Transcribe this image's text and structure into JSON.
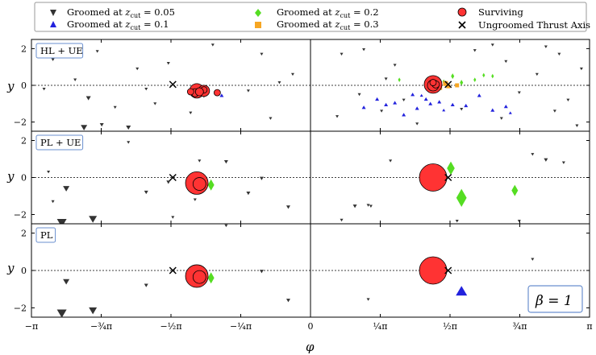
{
  "figure": {
    "legend": {
      "placement": "top",
      "items": [
        {
          "marker": "triangle-down",
          "color": "#333333",
          "label": "Groomed at z_cut = 0.05"
        },
        {
          "marker": "triangle-up",
          "color": "#2222dd",
          "label": "Groomed at z_cut = 0.1"
        },
        {
          "marker": "diamond",
          "color": "#55dd22",
          "label": "Groomed at z_cut = 0.2"
        },
        {
          "marker": "square",
          "color": "#f6a623",
          "label": "Groomed at z_cut = 0.3"
        },
        {
          "marker": "circle",
          "color": "#ff3333",
          "label": "Surviving"
        },
        {
          "marker": "x",
          "color": "#000000",
          "label": "Ungroomed Thrust Axis"
        }
      ]
    },
    "xlabel": "φ",
    "ylabel": "y",
    "beta_label": "β = 1",
    "colors": {
      "groomed_005": "#333333",
      "groomed_01": "#2222dd",
      "groomed_02": "#55dd22",
      "groomed_03": "#f6a623",
      "surviving": "#ff3333",
      "axis": "#000000"
    }
  },
  "chart_data": [
    {
      "type": "scatter",
      "panel_label": "HL + UE",
      "xlim": [
        -3.1416,
        3.1416
      ],
      "ylim": [
        -2.5,
        2.5
      ],
      "xticks": [
        "−π",
        "−¾π",
        "−½π",
        "−¼π",
        "0",
        "¼π",
        "½π",
        "¾π",
        "π"
      ],
      "yticks": [
        "2",
        "0",
        "−2"
      ],
      "series": [
        {
          "kind": "groomed_005",
          "points": [
            [
              -2.5,
              -0.7,
              3
            ],
            [
              -2.35,
              -2.15,
              2.5
            ],
            [
              -2.55,
              -2.3,
              4
            ],
            [
              -2.05,
              -2.3,
              3
            ],
            [
              -1.95,
              0.9,
              2
            ],
            [
              -1.6,
              1.2,
              2
            ],
            [
              -1.35,
              -1.5,
              2
            ],
            [
              -1.1,
              2.2,
              2
            ],
            [
              -0.55,
              1.7,
              2
            ],
            [
              -0.35,
              0.15,
              2
            ],
            [
              -0.2,
              0.6,
              2
            ],
            [
              -2.9,
              1.4,
              2
            ],
            [
              -2.65,
              0.3,
              2
            ],
            [
              -1.75,
              -1.0,
              2
            ],
            [
              -1.2,
              -0.6,
              2
            ],
            [
              -0.7,
              -0.3,
              2
            ],
            [
              -0.45,
              -1.8,
              2
            ],
            [
              -2.4,
              1.85,
              2
            ],
            [
              -1.85,
              -0.2,
              2
            ],
            [
              -2.2,
              -1.2,
              2
            ],
            [
              -3.0,
              -0.2,
              2
            ],
            [
              0.35,
              1.7,
              2
            ],
            [
              0.55,
              -0.5,
              2
            ],
            [
              0.8,
              -1.4,
              2
            ],
            [
              0.95,
              1.1,
              2
            ],
            [
              1.05,
              -0.8,
              2
            ],
            [
              1.2,
              -2.1,
              2
            ],
            [
              0.6,
              1.95,
              2
            ],
            [
              0.3,
              -1.7,
              2
            ],
            [
              0.85,
              0.35,
              2
            ],
            [
              1.85,
              1.9,
              2
            ],
            [
              2.2,
              1.3,
              2
            ],
            [
              2.35,
              -0.4,
              2
            ],
            [
              2.55,
              0.6,
              2
            ],
            [
              2.8,
              1.7,
              2
            ],
            [
              2.9,
              -0.8,
              2
            ],
            [
              3.0,
              -2.2,
              2
            ],
            [
              2.15,
              -1.8,
              2
            ],
            [
              1.7,
              -1.3,
              2
            ],
            [
              2.65,
              2.1,
              2
            ],
            [
              2.75,
              -1.4,
              2
            ],
            [
              2.05,
              2.2,
              2
            ],
            [
              3.05,
              0.9,
              2
            ]
          ]
        },
        {
          "kind": "groomed_01",
          "points": [
            [
              -1.0,
              -0.55,
              2.5
            ],
            [
              -1.25,
              -0.2,
              2
            ],
            [
              0.6,
              -1.2,
              2.5
            ],
            [
              0.75,
              -0.75,
              2.5
            ],
            [
              0.85,
              -1.05,
              2.5
            ],
            [
              0.95,
              -0.95,
              2.5
            ],
            [
              1.05,
              -1.6,
              2.5
            ],
            [
              1.2,
              -1.25,
              2.5
            ],
            [
              1.35,
              -1.0,
              2.5
            ],
            [
              1.45,
              -0.9,
              2.5
            ],
            [
              1.6,
              -1.05,
              2.5
            ],
            [
              1.75,
              -1.1,
              2.5
            ],
            [
              1.9,
              -0.55,
              2.5
            ],
            [
              2.05,
              -1.35,
              2.5
            ],
            [
              2.2,
              -1.15,
              2.5
            ],
            [
              1.3,
              -0.75,
              2.5
            ],
            [
              1.25,
              -0.55,
              2
            ],
            [
              1.5,
              -1.35,
              2
            ],
            [
              1.15,
              -0.5,
              2.5
            ],
            [
              2.25,
              -1.5,
              2
            ]
          ]
        },
        {
          "kind": "groomed_02",
          "points": [
            [
              1.6,
              0.5,
              2.5
            ],
            [
              1.7,
              0.15,
              2.5
            ],
            [
              1.85,
              0.3,
              2
            ],
            [
              2.05,
              0.5,
              2
            ],
            [
              1.95,
              0.55,
              2
            ],
            [
              1.5,
              0.2,
              2
            ],
            [
              1.0,
              0.3,
              2
            ]
          ]
        },
        {
          "kind": "groomed_03",
          "points": [
            [
              1.52,
              0.1,
              3
            ],
            [
              1.45,
              -0.1,
              3.5
            ],
            [
              1.55,
              -0.05,
              2.5
            ],
            [
              1.65,
              0.0,
              2.5
            ]
          ]
        },
        {
          "kind": "surviving",
          "points": [
            [
              -1.28,
              -0.3,
              9
            ],
            [
              -1.2,
              -0.3,
              7
            ],
            [
              -1.3,
              -0.4,
              5
            ],
            [
              -1.2,
              -0.25,
              4
            ],
            [
              -1.25,
              -0.35,
              5
            ],
            [
              -1.05,
              -0.4,
              4
            ],
            [
              -1.35,
              -0.35,
              4
            ],
            [
              1.38,
              0.05,
              11
            ],
            [
              1.38,
              0.0,
              7
            ],
            [
              1.41,
              0.05,
              4.5
            ],
            [
              1.38,
              0.15,
              4
            ]
          ]
        },
        {
          "kind": "axis",
          "points": [
            [
              -1.55,
              0.05,
              4
            ],
            [
              1.55,
              0.05,
              4
            ]
          ]
        }
      ]
    },
    {
      "type": "scatter",
      "panel_label": "PL + UE",
      "xlim": [
        -3.1416,
        3.1416
      ],
      "ylim": [
        -2.5,
        2.5
      ],
      "yticks": [
        "2",
        "0",
        "−2"
      ],
      "series": [
        {
          "kind": "groomed_005",
          "points": [
            [
              -2.75,
              -0.6,
              4
            ],
            [
              -2.8,
              -2.45,
              6
            ],
            [
              -2.45,
              -2.25,
              5
            ],
            [
              -2.05,
              1.9,
              2
            ],
            [
              -1.85,
              -0.8,
              2.5
            ],
            [
              -1.55,
              -2.15,
              2
            ],
            [
              -1.25,
              0.9,
              2
            ],
            [
              -0.95,
              0.85,
              2.5
            ],
            [
              -0.55,
              -0.05,
              2.5
            ],
            [
              -0.25,
              -1.6,
              2.5
            ],
            [
              -2.95,
              0.3,
              2
            ],
            [
              -2.9,
              -1.3,
              2
            ],
            [
              -1.6,
              -0.25,
              2.5
            ],
            [
              -1.3,
              -1.2,
              2
            ],
            [
              -0.7,
              -0.85,
              2.5
            ],
            [
              0.5,
              -1.55,
              2.5
            ],
            [
              0.65,
              -1.5,
              2
            ],
            [
              0.68,
              -1.55,
              2
            ],
            [
              0.9,
              0.9,
              2
            ],
            [
              0.35,
              -2.3,
              2
            ],
            [
              1.65,
              -2.35,
              2
            ],
            [
              2.35,
              -2.35,
              2
            ],
            [
              2.5,
              1.25,
              2
            ],
            [
              2.65,
              0.95,
              2.5
            ],
            [
              2.85,
              0.8,
              2
            ]
          ]
        },
        {
          "kind": "groomed_02",
          "points": [
            [
              -1.12,
              -0.4,
              5
            ],
            [
              1.58,
              0.5,
              6
            ],
            [
              1.7,
              -1.1,
              8
            ],
            [
              2.3,
              -0.7,
              5
            ]
          ]
        },
        {
          "kind": "surviving",
          "points": [
            [
              -1.28,
              -0.3,
              14
            ],
            [
              -1.25,
              -0.35,
              8
            ],
            [
              1.38,
              0.0,
              17
            ]
          ]
        },
        {
          "kind": "axis",
          "points": [
            [
              -1.55,
              0.0,
              4
            ],
            [
              1.55,
              0.0,
              4
            ]
          ]
        }
      ]
    },
    {
      "type": "scatter",
      "panel_label": "PL",
      "xlim": [
        -3.1416,
        3.1416
      ],
      "ylim": [
        -2.5,
        2.5
      ],
      "yticks": [
        "2",
        "0",
        "−2"
      ],
      "series": [
        {
          "kind": "groomed_005",
          "points": [
            [
              -2.75,
              -0.6,
              4
            ],
            [
              -2.8,
              -2.3,
              6
            ],
            [
              -2.45,
              -2.15,
              5
            ],
            [
              -1.85,
              -0.8,
              2.5
            ],
            [
              -0.55,
              -0.05,
              2.5
            ],
            [
              -0.25,
              -1.6,
              2.5
            ],
            [
              -0.95,
              2.4,
              2
            ],
            [
              0.65,
              -1.55,
              2
            ],
            [
              2.5,
              0.6,
              2
            ]
          ]
        },
        {
          "kind": "groomed_01",
          "points": [
            [
              1.7,
              -1.1,
              7
            ]
          ]
        },
        {
          "kind": "groomed_02",
          "points": [
            [
              -1.12,
              -0.4,
              5
            ]
          ]
        },
        {
          "kind": "surviving",
          "points": [
            [
              -1.28,
              -0.3,
              14
            ],
            [
              -1.25,
              -0.35,
              8
            ],
            [
              1.38,
              0.0,
              17
            ]
          ]
        },
        {
          "kind": "axis",
          "points": [
            [
              -1.55,
              0.0,
              4
            ],
            [
              1.55,
              0.0,
              4
            ]
          ]
        }
      ]
    }
  ]
}
